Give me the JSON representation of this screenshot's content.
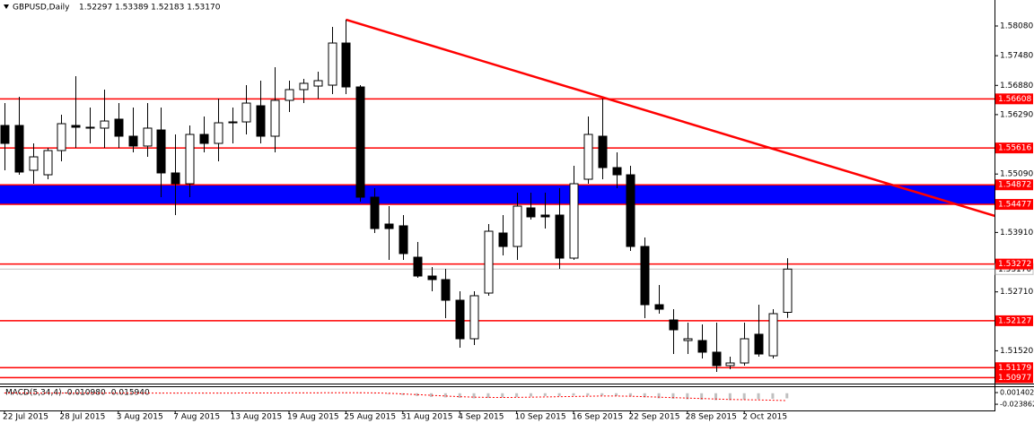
{
  "chart_data": {
    "type": "candlestick",
    "title": "GBPUSD,Daily",
    "ohlc_label": "1.52297 1.53389 1.52183 1.53170",
    "categories": [
      "22 Jul 2015",
      null,
      null,
      null,
      "28 Jul 2015",
      null,
      null,
      null,
      "3 Aug 2015",
      null,
      null,
      null,
      "7 Aug 2015",
      null,
      null,
      null,
      "13 Aug 2015",
      null,
      null,
      null,
      "19 Aug 2015",
      null,
      null,
      null,
      "25 Aug 2015",
      null,
      null,
      null,
      "31 Aug 2015",
      null,
      null,
      null,
      "4 Sep 2015",
      null,
      null,
      null,
      "10 Sep 2015",
      null,
      null,
      null,
      "16 Sep 2015",
      null,
      null,
      null,
      "22 Sep 2015",
      null,
      null,
      null,
      "28 Sep 2015",
      null,
      null,
      null,
      "2 Oct 2015",
      null,
      null,
      null
    ],
    "open": [
      1.56071,
      1.56071,
      1.55166,
      1.55075,
      1.55564,
      1.56071,
      1.56017,
      1.56017,
      1.56198,
      1.55854,
      1.55655,
      1.5598,
      1.55112,
      1.54894,
      1.5589,
      1.55709,
      1.56125,
      1.56143,
      1.56469,
      1.55854,
      1.56578,
      1.56795,
      1.56867,
      1.56885,
      1.57736,
      1.56849,
      1.54623,
      1.5408,
      1.54044,
      1.5341,
      1.5303,
      1.52958,
      1.52541,
      1.51763,
      1.52686,
      1.53899,
      1.53627,
      1.54406,
      1.54261,
      1.54261,
      1.53392,
      1.54985,
      1.55854,
      1.5522,
      1.55075,
      1.53627,
      1.52451,
      1.52143,
      1.51727,
      1.51727,
      1.51492,
      1.5122,
      1.51274,
      1.51854,
      1.51419,
      1.52297
    ],
    "high": [
      1.56523,
      1.5665,
      1.55709,
      1.55618,
      1.56288,
      1.57066,
      1.56433,
      1.56795,
      1.56523,
      1.56433,
      1.56523,
      1.56433,
      1.5589,
      1.56071,
      1.56252,
      1.56614,
      1.56433,
      1.56885,
      1.56976,
      1.57247,
      1.56976,
      1.57012,
      1.57157,
      1.58062,
      1.58207,
      1.56885,
      1.54804,
      1.54442,
      1.54261,
      1.53718,
      1.53211,
      1.53175,
      1.52722,
      1.52722,
      1.5408,
      1.54261,
      1.54713,
      1.54713,
      1.54713,
      1.54804,
      1.55256,
      1.56252,
      1.56614,
      1.55528,
      1.55256,
      1.53808,
      1.52849,
      1.5236,
      1.52089,
      1.52053,
      1.52089,
      1.51401,
      1.52089,
      1.52451,
      1.5236,
      1.53389
    ],
    "low": [
      1.55166,
      1.55075,
      1.54894,
      1.54985,
      1.55347,
      1.55618,
      1.55709,
      1.55618,
      1.55618,
      1.55528,
      1.55437,
      1.54623,
      1.54261,
      1.54623,
      1.55528,
      1.55347,
      1.55709,
      1.5589,
      1.55709,
      1.55528,
      1.56342,
      1.56523,
      1.56614,
      1.56704,
      1.56704,
      1.54532,
      1.53899,
      1.53356,
      1.53356,
      1.52994,
      1.52722,
      1.52179,
      1.51582,
      1.51636,
      1.52632,
      1.53446,
      1.53356,
      1.5417,
      1.53989,
      1.53175,
      1.53356,
      1.54894,
      1.54985,
      1.54804,
      1.53537,
      1.52179,
      1.5227,
      1.51455,
      1.51455,
      1.51365,
      1.51093,
      1.51148,
      1.5122,
      1.51401,
      1.51365,
      1.52183
    ],
    "close": [
      1.55709,
      1.5513,
      1.55437,
      1.55564,
      1.56107,
      1.56035,
      1.56035,
      1.56161,
      1.55854,
      1.55655,
      1.56017,
      1.55112,
      1.54894,
      1.5589,
      1.55709,
      1.56125,
      1.56143,
      1.56523,
      1.55854,
      1.56578,
      1.56795,
      1.56922,
      1.56976,
      1.57736,
      1.56849,
      1.54623,
      1.53989,
      1.53989,
      1.53483,
      1.5303,
      1.52958,
      1.52541,
      1.51763,
      1.52632,
      1.53935,
      1.53627,
      1.54442,
      1.54225,
      1.54225,
      1.53392,
      1.54894,
      1.5589,
      1.5522,
      1.55075,
      1.53627,
      1.52451,
      1.5236,
      1.51944,
      1.51763,
      1.51492,
      1.5122,
      1.51274,
      1.51763,
      1.51455,
      1.5227,
      1.5317
    ],
    "ylim": [
      1.50858,
      1.58605
    ],
    "yticks": [
      {
        "value": 1.5808,
        "label": "1.58080"
      },
      {
        "value": 1.5748,
        "label": "1.57480"
      },
      {
        "value": 1.5688,
        "label": "1.56880"
      },
      {
        "value": 1.5629,
        "label": "1.56290"
      },
      {
        "value": 1.5509,
        "label": "1.55090"
      },
      {
        "value": 1.5391,
        "label": "1.53910"
      },
      {
        "value": 1.5271,
        "label": "1.52710"
      },
      {
        "value": 1.5152,
        "label": "1.51520"
      }
    ],
    "levels": [
      1.56608,
      1.55616,
      1.54872,
      1.54477,
      1.53272,
      1.52127,
      1.51179,
      1.50977
    ],
    "level_color": "#ff0000",
    "band": {
      "from": 1.54477,
      "to": 1.54872,
      "color": "#0000ff"
    },
    "current_price": {
      "value": 1.5317,
      "label": "1.53170"
    },
    "trendline": {
      "color": "#ff0000",
      "start": [
        24,
        1.58207
      ],
      "end": [
        70,
        1.5421
      ]
    },
    "macd": {
      "label": "MACD(5,34,4) -0.010980 -0.015940",
      "hist": [
        0.0004,
        0.0003,
        0.0002,
        0.0002,
        0.0003,
        0.0004,
        0.0004,
        0.0005,
        0.0004,
        0.0004,
        0.0005,
        0.0003,
        0.0002,
        0.0003,
        0.0003,
        0.0004,
        0.0005,
        0.0006,
        0.0006,
        0.0007,
        0.0008,
        0.0009,
        0.001,
        0.0012,
        0.0012,
        0.0008,
        0.0002,
        -0.002,
        -0.004,
        -0.006,
        -0.008,
        -0.009,
        -0.01,
        -0.011,
        -0.01,
        -0.009,
        -0.008,
        -0.007,
        -0.006,
        -0.006,
        -0.005,
        -0.005,
        -0.005,
        -0.006,
        -0.007,
        -0.009,
        -0.011,
        -0.012,
        -0.013,
        -0.014,
        -0.015,
        -0.015,
        -0.014,
        -0.013,
        -0.012,
        -0.01098
      ],
      "signal": [
        0.0006,
        0.0005,
        0.0004,
        0.0003,
        0.0003,
        0.0003,
        0.0004,
        0.0004,
        0.0004,
        0.0004,
        0.0004,
        0.0004,
        0.0003,
        0.0003,
        0.0003,
        0.0003,
        0.0004,
        0.0005,
        0.0005,
        0.0006,
        0.0007,
        0.0008,
        0.0009,
        0.001,
        0.0011,
        0.001,
        0.0007,
        0.0,
        -0.0015,
        -0.003,
        -0.0045,
        -0.006,
        -0.0075,
        -0.0085,
        -0.009,
        -0.0092,
        -0.009,
        -0.0085,
        -0.008,
        -0.0075,
        -0.007,
        -0.0065,
        -0.006,
        -0.006,
        -0.0065,
        -0.0075,
        -0.0085,
        -0.0095,
        -0.0105,
        -0.0115,
        -0.0125,
        -0.0135,
        -0.014,
        -0.0145,
        -0.0152,
        -0.01594
      ],
      "hist_color": "#c0c0c0",
      "signal_color": "#ff0000",
      "ylim": [
        -0.03734,
        0.01319
      ],
      "yticks": [
        0.001402,
        -0.023862
      ]
    }
  }
}
